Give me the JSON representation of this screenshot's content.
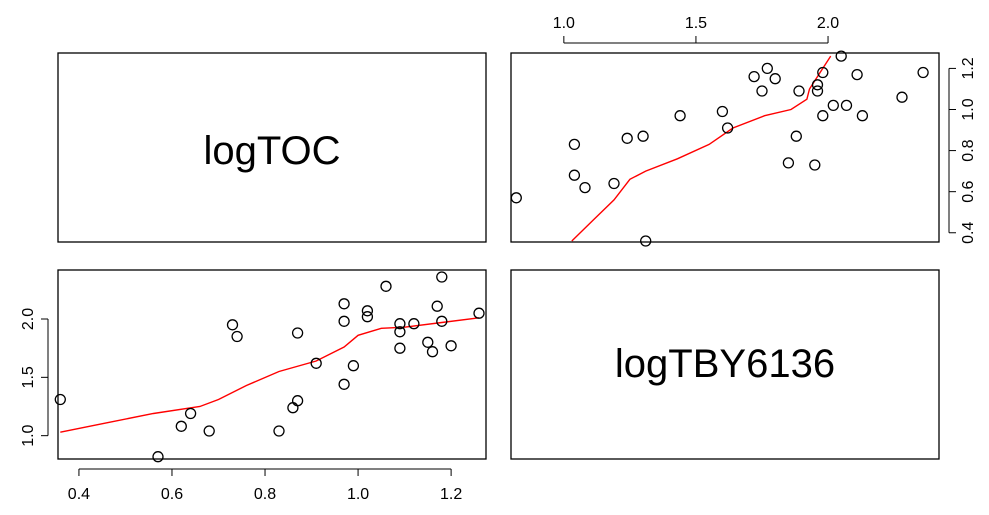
{
  "chart_data": {
    "type": "scatter",
    "layout": "pairs",
    "variables": [
      "logTOC",
      "logTBY6136"
    ],
    "diag_labels": [
      "logTOC",
      "logTBY6136"
    ],
    "axes": {
      "logTOC": {
        "ticks": [
          0.4,
          0.6,
          0.8,
          1.0,
          1.2
        ],
        "tick_labels": [
          "0.4",
          "0.6",
          "0.8",
          "1.0",
          "1.2"
        ],
        "range": [
          0.355,
          1.275
        ]
      },
      "logTBY6136": {
        "ticks": [
          1.0,
          1.5,
          2.0
        ],
        "tick_labels": [
          "1.0",
          "1.5",
          "2.0"
        ],
        "range": [
          0.8,
          2.42
        ]
      }
    },
    "points": [
      {
        "logTOC": 0.36,
        "logTBY6136": 1.31
      },
      {
        "logTOC": 0.57,
        "logTBY6136": 0.82
      },
      {
        "logTOC": 0.62,
        "logTBY6136": 1.08
      },
      {
        "logTOC": 0.64,
        "logTBY6136": 1.19
      },
      {
        "logTOC": 0.68,
        "logTBY6136": 1.04
      },
      {
        "logTOC": 0.73,
        "logTBY6136": 1.95
      },
      {
        "logTOC": 0.74,
        "logTBY6136": 1.85
      },
      {
        "logTOC": 0.83,
        "logTBY6136": 1.04
      },
      {
        "logTOC": 0.86,
        "logTBY6136": 1.24
      },
      {
        "logTOC": 0.87,
        "logTBY6136": 1.88
      },
      {
        "logTOC": 0.87,
        "logTBY6136": 1.3
      },
      {
        "logTOC": 0.91,
        "logTBY6136": 1.62
      },
      {
        "logTOC": 0.97,
        "logTBY6136": 2.13
      },
      {
        "logTOC": 0.97,
        "logTBY6136": 1.98
      },
      {
        "logTOC": 0.97,
        "logTBY6136": 1.44
      },
      {
        "logTOC": 0.99,
        "logTBY6136": 1.6
      },
      {
        "logTOC": 1.02,
        "logTBY6136": 2.07
      },
      {
        "logTOC": 1.02,
        "logTBY6136": 2.02
      },
      {
        "logTOC": 1.06,
        "logTBY6136": 2.28
      },
      {
        "logTOC": 1.09,
        "logTBY6136": 1.96
      },
      {
        "logTOC": 1.09,
        "logTBY6136": 1.89
      },
      {
        "logTOC": 1.09,
        "logTBY6136": 1.75
      },
      {
        "logTOC": 1.12,
        "logTBY6136": 1.96
      },
      {
        "logTOC": 1.15,
        "logTBY6136": 1.8
      },
      {
        "logTOC": 1.16,
        "logTBY6136": 1.72
      },
      {
        "logTOC": 1.17,
        "logTBY6136": 2.11
      },
      {
        "logTOC": 1.18,
        "logTBY6136": 2.36
      },
      {
        "logTOC": 1.18,
        "logTBY6136": 1.98
      },
      {
        "logTOC": 1.2,
        "logTBY6136": 1.77
      },
      {
        "logTOC": 1.26,
        "logTBY6136": 2.05
      }
    ],
    "smooth_line": {
      "color": "#ff0000",
      "logTOC": [
        0.36,
        0.46,
        0.56,
        0.66,
        0.7,
        0.76,
        0.83,
        0.91,
        0.97,
        1.0,
        1.05,
        1.1,
        1.18,
        1.26
      ],
      "logTBY6136": [
        1.03,
        1.11,
        1.19,
        1.25,
        1.31,
        1.43,
        1.55,
        1.64,
        1.76,
        1.86,
        1.92,
        1.93,
        1.97,
        2.01
      ]
    },
    "point_style": "open-circle",
    "grid": false,
    "legend": "none"
  }
}
